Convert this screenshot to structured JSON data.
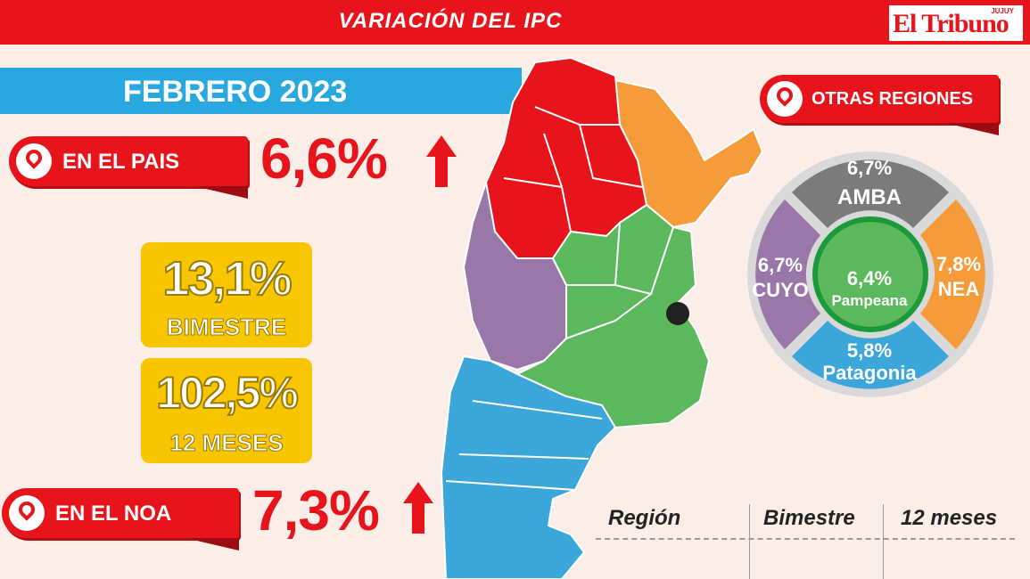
{
  "header": {
    "title": "VARIACIÓN DEL IPC",
    "logo": "El Tribuno",
    "logo_sup": "JUJUY"
  },
  "period": "FEBRERO 2023",
  "country": {
    "label": "EN EL PAIS",
    "value": "6,6%",
    "trend": "up"
  },
  "bimestre": {
    "value": "13,1%",
    "label": "BIMESTRE"
  },
  "doce_meses": {
    "value": "102,5%",
    "label": "12 MESES"
  },
  "noa": {
    "label": "EN EL NOA",
    "value": "7,3%",
    "trend": "up"
  },
  "otras_regiones": {
    "label": "OTRAS REGIONES",
    "regions": [
      {
        "name": "AMBA",
        "value": "6,7%",
        "color": "#7b7b7b"
      },
      {
        "name": "NEA",
        "value": "7,8%",
        "color": "#f59b3a"
      },
      {
        "name": "Patagonia",
        "value": "5,8%",
        "color": "#3aa6d9"
      },
      {
        "name": "CUYO",
        "value": "6,7%",
        "color": "#9a77a9"
      },
      {
        "name": "Pampeana",
        "value": "6,4%",
        "color": "#5cb85c"
      }
    ]
  },
  "table": {
    "headers": [
      "Región",
      "Bimestre",
      "12 meses"
    ]
  },
  "colors": {
    "noa": "#e8141b",
    "nea": "#f59b3a",
    "cuyo": "#9a77a9",
    "pampeana": "#5cb85c",
    "patagonia": "#3aa6d9",
    "accent": "#e8141b",
    "yellow": "#f7c600"
  }
}
